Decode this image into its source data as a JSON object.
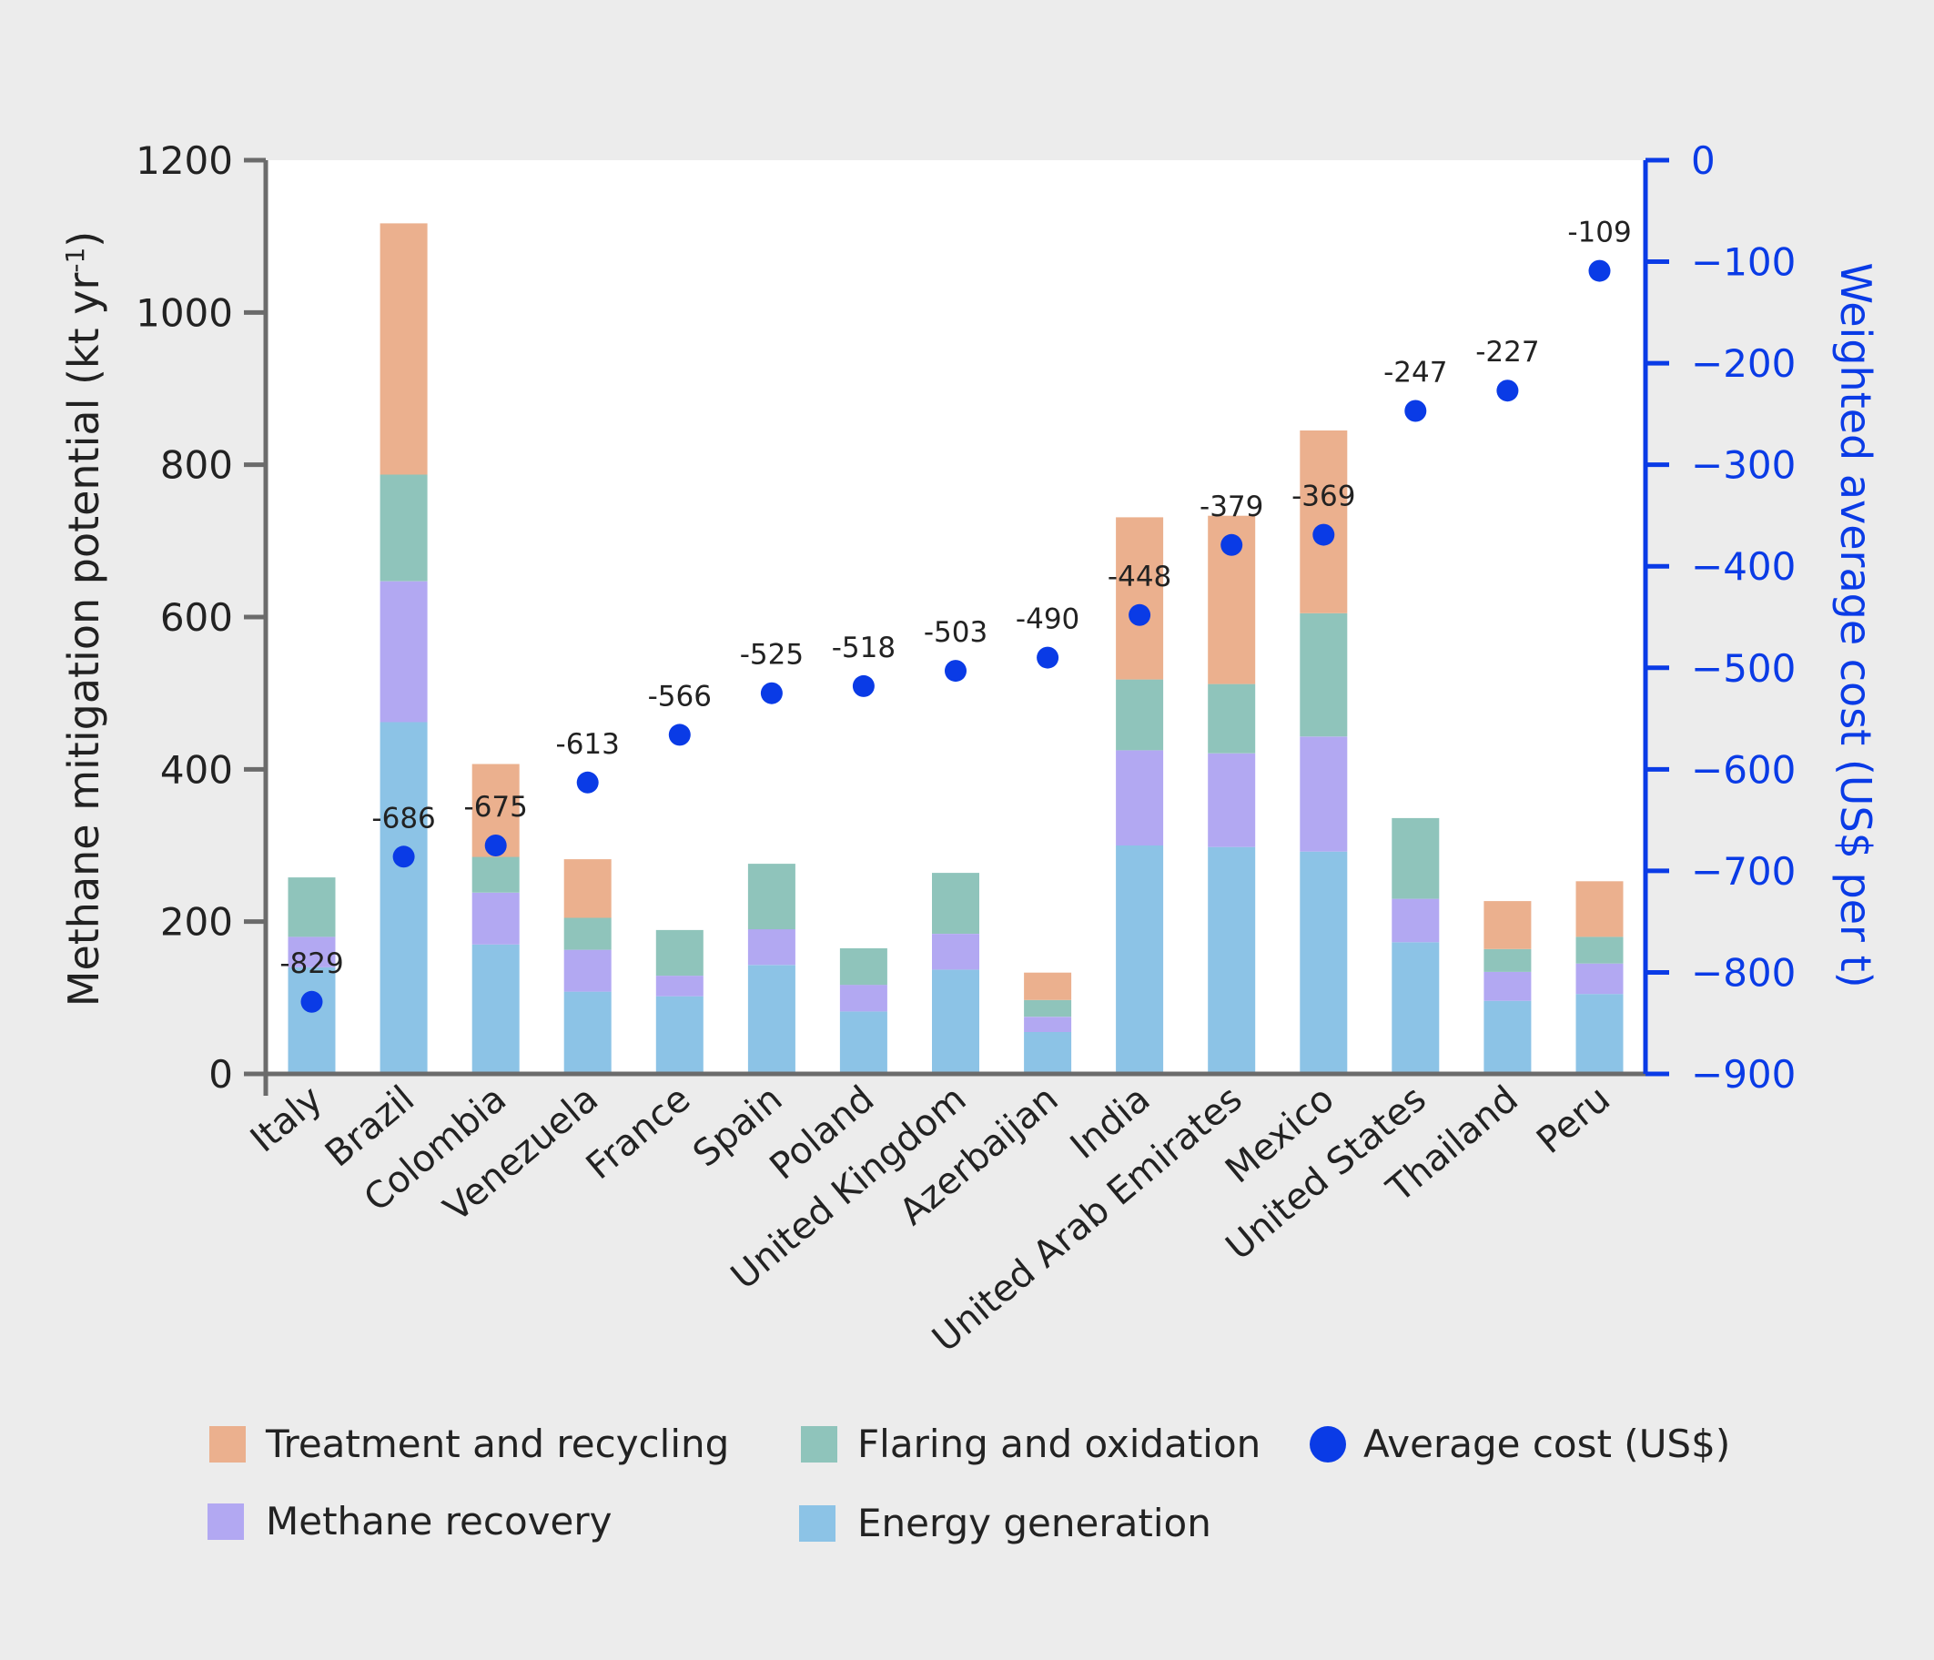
{
  "chart_data": {
    "type": "bar",
    "stacked": true,
    "ylabel_main": "Methane mitigation potential (kt yr",
    "ylabel_sup": "-1",
    "ylabel_close": ")",
    "y2label": "Weighted average cost (US$ per t)",
    "ylim": [
      0,
      1200
    ],
    "y2lim": [
      -900,
      0
    ],
    "yticks": [
      0,
      200,
      400,
      600,
      800,
      1000,
      1200
    ],
    "y2ticks": [
      0,
      -100,
      -200,
      -300,
      -400,
      -500,
      -600,
      -700,
      -800,
      -900
    ],
    "y2tick_labels": [
      "0",
      "−100",
      "−200",
      "−300",
      "−400",
      "−500",
      "−600",
      "−700",
      "−800",
      "−900"
    ],
    "categories": [
      "Italy",
      "Brazil",
      "Colombia",
      "Venezuela",
      "France",
      "Spain",
      "Poland",
      "United Kingdom",
      "Azerbaijan",
      "India",
      "United Arab Emirates",
      "Mexico",
      "United States",
      "Thailand",
      "Peru"
    ],
    "series": [
      {
        "name": "Energy generation",
        "color": "#8cc3e6",
        "values": [
          140,
          462,
          170,
          108,
          102,
          143,
          82,
          137,
          55,
          300,
          298,
          292,
          173,
          96,
          105
        ]
      },
      {
        "name": "Methane recovery",
        "color": "#b2a8f2",
        "values": [
          40,
          185,
          68,
          55,
          27,
          47,
          35,
          47,
          20,
          125,
          123,
          151,
          57,
          38,
          40
        ]
      },
      {
        "name": "Flaring and oxidation",
        "color": "#8fc4bb",
        "values": [
          78,
          140,
          47,
          42,
          60,
          86,
          48,
          80,
          22,
          93,
          91,
          162,
          106,
          30,
          35
        ]
      },
      {
        "name": "Treatment and recycling",
        "color": "#ebb08e",
        "values": [
          0,
          330,
          122,
          77,
          0,
          0,
          0,
          0,
          36,
          213,
          221,
          240,
          0,
          63,
          73
        ]
      }
    ],
    "cost": {
      "name": "Average cost (US$)",
      "color": "#0a3be6",
      "values": [
        -829,
        -686,
        -675,
        -613,
        -566,
        -525,
        -518,
        -503,
        -490,
        -448,
        -379,
        -369,
        -247,
        -227,
        -109
      ]
    },
    "cost_labels": [
      "-829",
      "-686",
      "-675",
      "-613",
      "-566",
      "-525",
      "-518",
      "-503",
      "-490",
      "-448",
      "-379",
      "-369",
      "-247",
      "-227",
      "-109"
    ],
    "legend": [
      {
        "label": "Treatment and recycling",
        "color": "#ebb08e",
        "shape": "square"
      },
      {
        "label": "Flaring and oxidation",
        "color": "#8fc4bb",
        "shape": "square"
      },
      {
        "label": "Average cost (US$)",
        "color": "#0a3be6",
        "shape": "circle"
      },
      {
        "label": "Methane recovery",
        "color": "#b2a8f2",
        "shape": "square"
      },
      {
        "label": "Energy generation",
        "color": "#8cc3e6",
        "shape": "square"
      }
    ],
    "legend_position": "bottom"
  },
  "colors": {
    "axis_left": "#6b6b6b",
    "axis_right": "#0a3be6",
    "plot_bg": "#ffffff",
    "page_bg": "#ececec",
    "text": "#222222"
  }
}
